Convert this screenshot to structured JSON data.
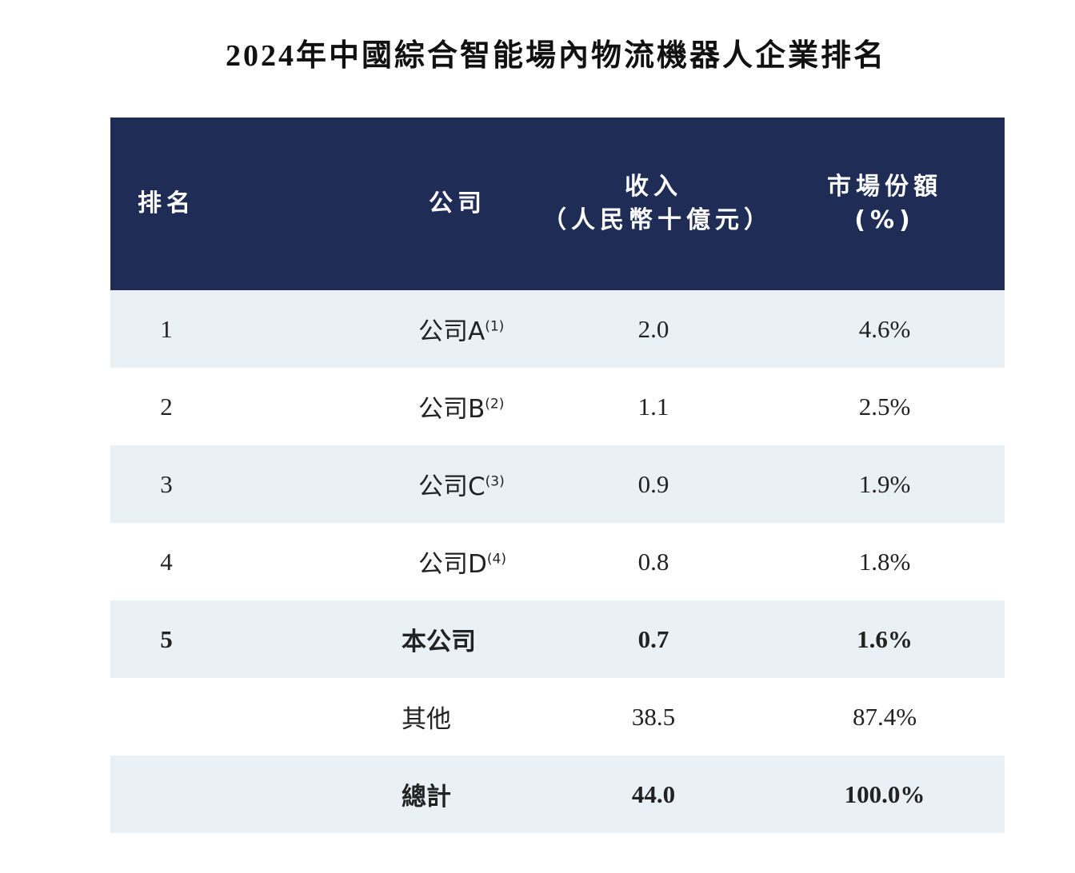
{
  "title": "2024年中國綜合智能場內物流機器人企業排名",
  "table": {
    "header": [
      [
        "排名"
      ],
      [
        "公司"
      ],
      [
        "收入",
        "（人民幣十億元）"
      ],
      [
        "市場份額",
        "(%)"
      ]
    ],
    "rows": [
      [
        "1",
        {
          "name": "公司A",
          "note": "(1)"
        },
        "2.0",
        "4.6%"
      ],
      [
        "2",
        {
          "name": "公司B",
          "note": "(2)"
        },
        "1.1",
        "2.5%"
      ],
      [
        "3",
        {
          "name": "公司C",
          "note": "(3)"
        },
        "0.9",
        "1.9%"
      ],
      [
        "4",
        {
          "name": "公司D",
          "note": "(4)"
        },
        "0.8",
        "1.8%"
      ],
      [
        "5",
        {
          "name": "本公司"
        },
        "0.7",
        "1.6%"
      ],
      [
        null,
        {
          "name": "其他"
        },
        "38.5",
        "87.4%"
      ],
      [
        null,
        {
          "name": "總計"
        },
        "44.0",
        "100.0%"
      ]
    ],
    "bold_rows": [
      4,
      6
    ]
  }
}
